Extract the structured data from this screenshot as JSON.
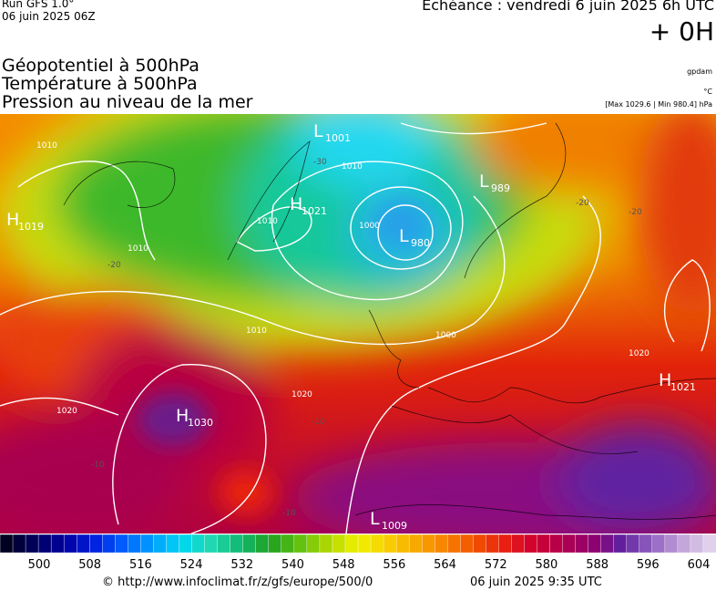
{
  "header": {
    "run": "Run GFS 1.0°",
    "date": "06 juin 2025 06Z",
    "echeance": "Echéance : vendredi 6 juin 2025 6h UTC",
    "step": "+ 0H"
  },
  "titles": [
    "Géopotentiel à 500hPa",
    "Température à 500hPa",
    "Pression au niveau de la mer"
  ],
  "units": {
    "geopotential": "gpdam",
    "temperature": "°C",
    "pressure_range": "[Max 1029.6 | Min 980.4] hPa"
  },
  "centers": [
    {
      "kind": "L",
      "value": "1001"
    },
    {
      "kind": "H",
      "value": "1021"
    },
    {
      "kind": "L",
      "value": "989"
    },
    {
      "kind": "L",
      "value": "980"
    },
    {
      "kind": "H",
      "value": "1019"
    },
    {
      "kind": "H",
      "value": "1030"
    },
    {
      "kind": "H",
      "value": "1021"
    },
    {
      "kind": "L",
      "value": "1009"
    }
  ],
  "isobar_labels": [
    "1010",
    "1010",
    "1000",
    "1010",
    "1010",
    "1020",
    "1020",
    "1010",
    "1020",
    "1000"
  ],
  "temperature_labels": [
    "-30",
    "-20",
    "-20",
    "-20",
    "-10",
    "-10",
    "-10"
  ],
  "colorbar_ticks": [
    500,
    508,
    516,
    524,
    532,
    540,
    548,
    556,
    564,
    572,
    580,
    588,
    596,
    604
  ],
  "footer": {
    "url": "© http://www.infoclimat.fr/z/gfs/europe/500/0",
    "time": "06 juin 2025  9:35 UTC"
  }
}
